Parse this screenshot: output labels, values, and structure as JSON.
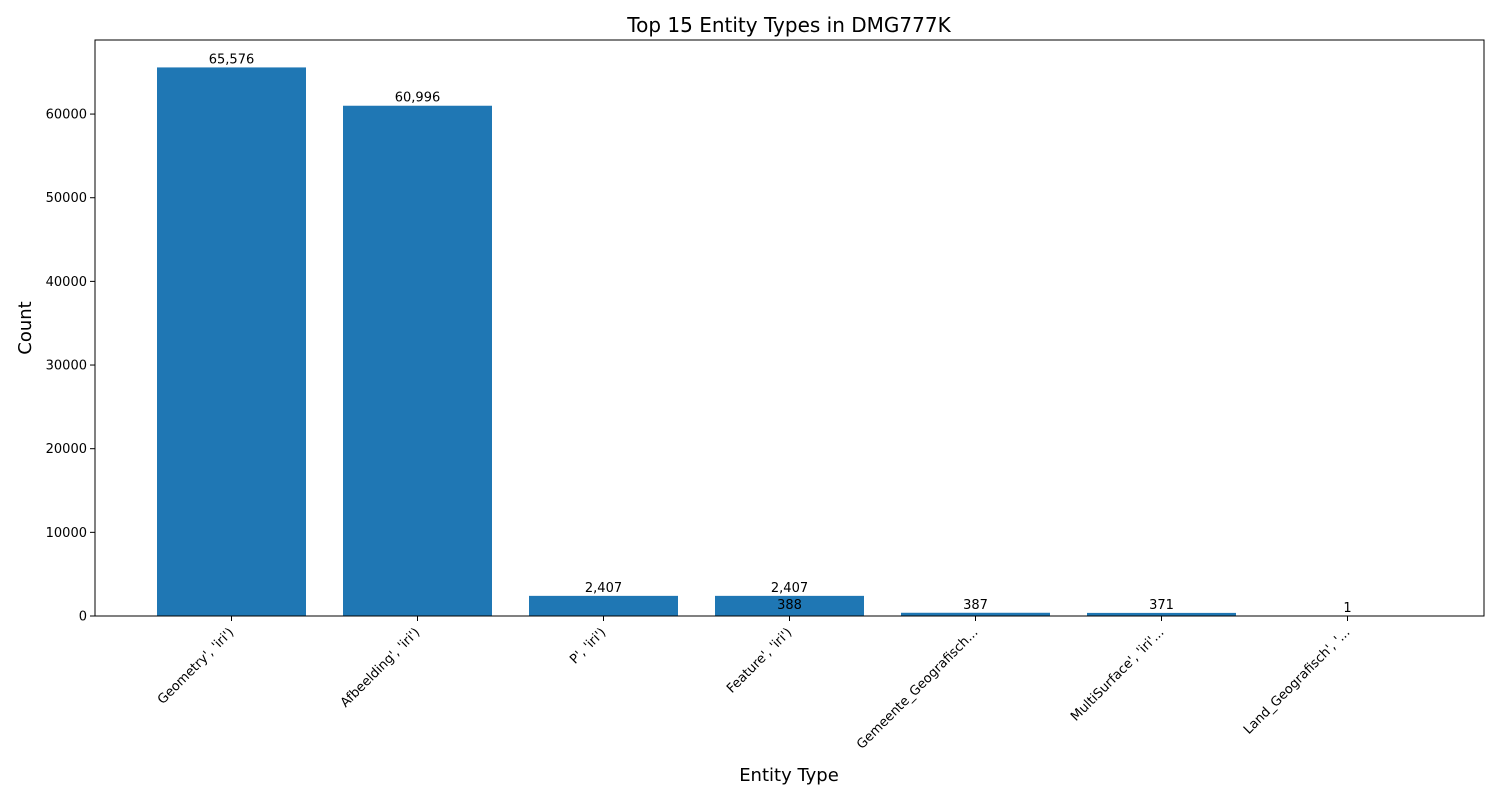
{
  "chart_data": {
    "type": "bar",
    "title": "Top 15 Entity Types in DMG777K",
    "xlabel": "Entity Type",
    "ylabel": "Count",
    "ylim": [
      0,
      68854
    ],
    "yticks": [
      0,
      10000,
      20000,
      30000,
      40000,
      50000,
      60000
    ],
    "ytick_labels": [
      "0",
      "10000",
      "20000",
      "30000",
      "40000",
      "50000",
      "60000"
    ],
    "grid": false,
    "categories": [
      "Geometry', 'iri')",
      "Afbeelding', 'iri')",
      "P', 'iri')",
      "Feature', 'iri')",
      "Gemeente_Geografisch...",
      "MultiSurface', 'iri'...",
      "Land_Geografisch', '..."
    ],
    "slot_count": 7,
    "bars": [
      {
        "slot": 0,
        "value": 65576,
        "label": "65,576"
      },
      {
        "slot": 1,
        "value": 60996,
        "label": "60,996"
      },
      {
        "slot": 2,
        "value": 2407,
        "label": "2,407"
      },
      {
        "slot": 3,
        "value": 2407,
        "label": "2,407"
      },
      {
        "slot": 3,
        "value": 388,
        "label": "388"
      },
      {
        "slot": 4,
        "value": 387,
        "label": "387"
      },
      {
        "slot": 5,
        "value": 371,
        "label": "371"
      },
      {
        "slot": 6,
        "value": 1,
        "label": "1"
      }
    ],
    "colors": {
      "bar": "#1f77b4",
      "axis": "#000000",
      "background": "#ffffff"
    }
  }
}
